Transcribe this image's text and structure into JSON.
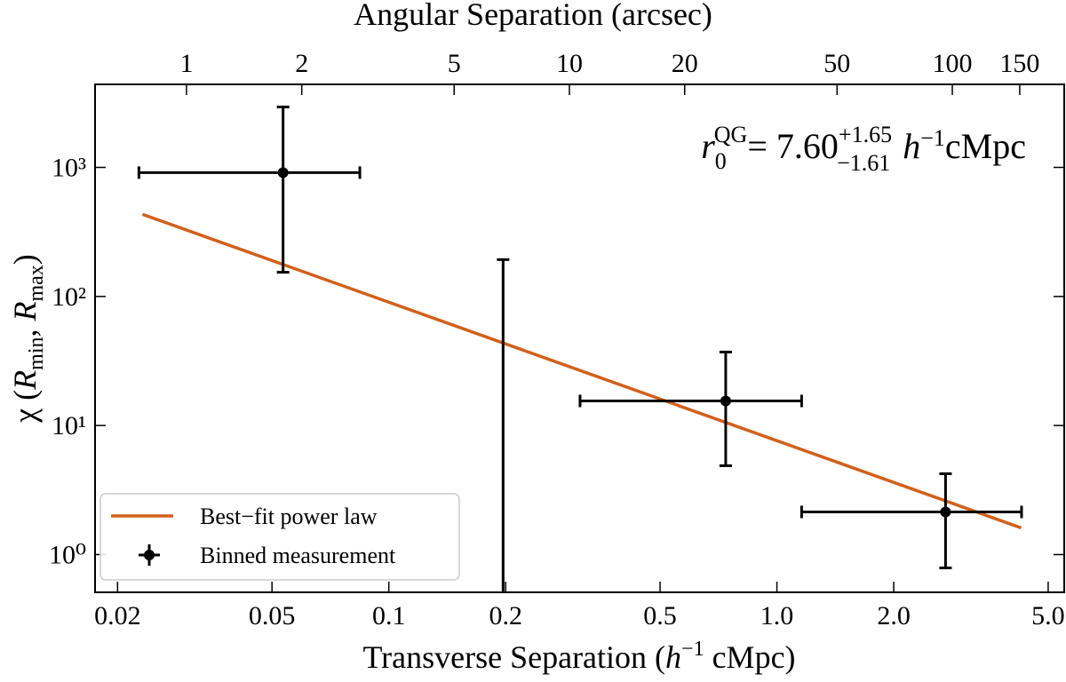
{
  "chart_data": {
    "type": "errorbar",
    "x2label": "Angular Separation (arcsec)",
    "xlabel": [
      "Transverse Separation (",
      "h",
      "−1",
      " cMpc)"
    ],
    "ylabel": [
      "χ (",
      "R",
      "min",
      ", ",
      "R",
      "max",
      ")"
    ],
    "xscale": "log",
    "yscale": "log",
    "xlim": [
      0.0175,
      5.5
    ],
    "ylim": [
      0.51,
      4400
    ],
    "x2lim": [
      0.577,
      196
    ],
    "xticks": [
      0.02,
      0.05,
      0.1,
      0.2,
      0.5,
      {
        "value": 1,
        "label": "1.0"
      },
      {
        "value": 2,
        "label": "2.0"
      },
      {
        "value": 5,
        "label": "5.0"
      }
    ],
    "yticks": [
      {
        "value": 1,
        "label": "10⁰"
      },
      {
        "value": 10,
        "label": "10¹"
      },
      {
        "value": 100,
        "label": "10²"
      },
      {
        "value": 1000,
        "label": "10³"
      }
    ],
    "x2ticks": [
      1,
      2,
      5,
      10,
      20,
      50,
      100,
      150
    ],
    "legend": "lower left",
    "annotation": {
      "symbol": "r",
      "sub": "0",
      "sup": "QG",
      "value": "= 7.60",
      "plus": "+1.65",
      "minus": "−1.61",
      "unit_h": "h",
      "unit_exp": "−1",
      "unit": "cMpc"
    },
    "series": [
      {
        "name": "Best−fit power law",
        "type": "line",
        "color": "#d2601a",
        "x": [
          0.0232,
          4.26
        ],
        "values": [
          433,
          1.61
        ]
      },
      {
        "name": "Binned measurement",
        "type": "errorbar",
        "color": "#000000",
        "x": [
          0.0534,
          0.197,
          0.738,
          2.72
        ],
        "values": [
          911,
          null,
          15.5,
          2.14
        ],
        "x_low": [
          0.0227,
          null,
          0.311,
          1.158
        ],
        "x_high": [
          0.0842,
          null,
          1.158,
          4.27
        ],
        "y_low": [
          154,
          null,
          4.88,
          0.788
        ],
        "y_high": [
          2940,
          193,
          37.1,
          4.23
        ]
      }
    ]
  }
}
